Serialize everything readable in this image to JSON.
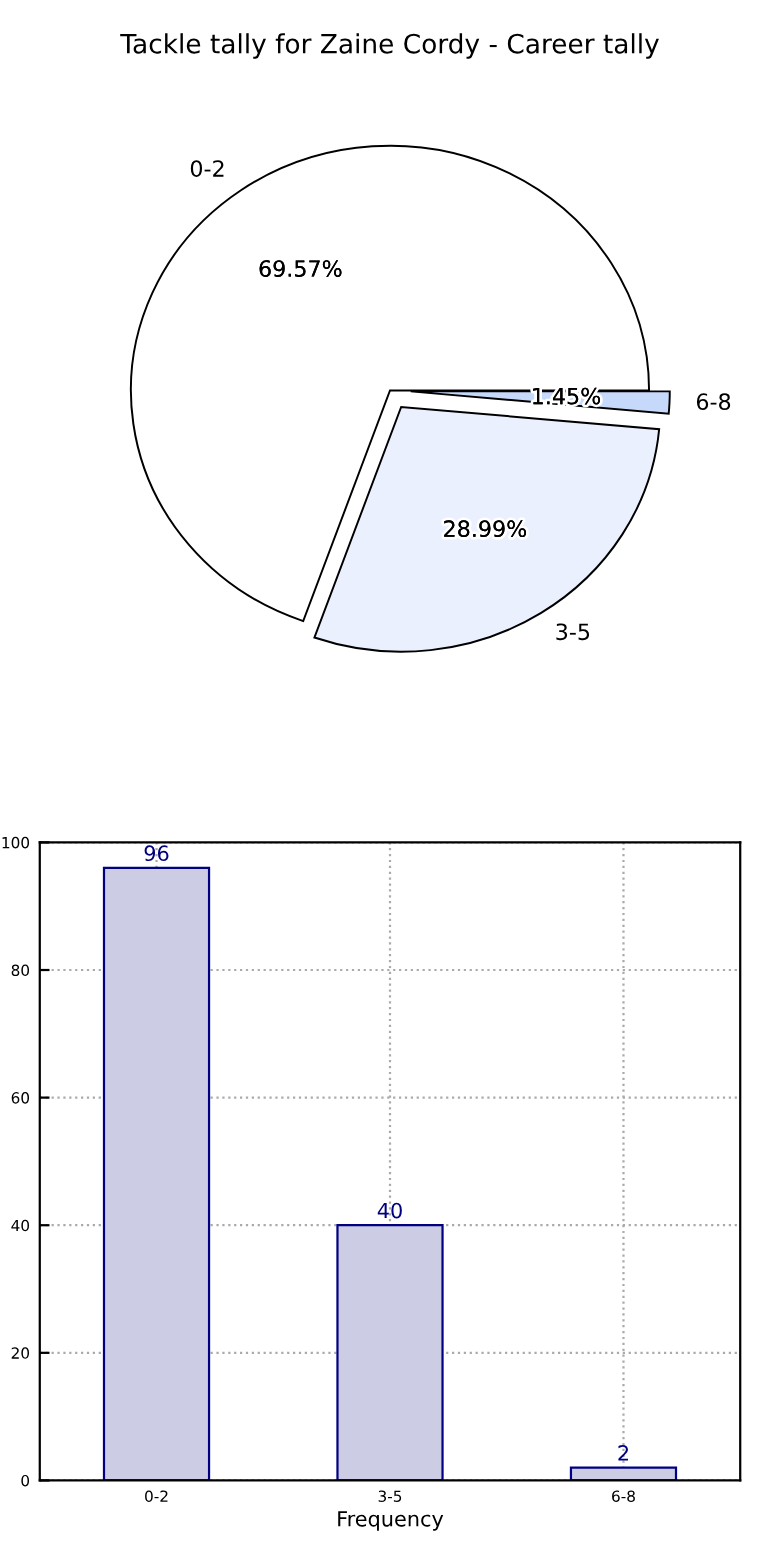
{
  "chart_data": [
    {
      "type": "pie",
      "title": "Tackle tally for Zaine Cordy - Career tally",
      "categories": [
        "0-2",
        "3-5",
        "6-8"
      ],
      "values": [
        69.57,
        28.99,
        1.45
      ],
      "colors": [
        "#ffffff",
        "#eaf0fe",
        "#c6d9fb"
      ],
      "value_labels": [
        "69.57%",
        "28.99%",
        "1.45%"
      ]
    },
    {
      "type": "bar",
      "categories": [
        "0-2",
        "3-5",
        "6-8"
      ],
      "values": [
        96,
        40,
        2
      ],
      "color": "#ccccE4",
      "xlabel": "Frequency",
      "ylim": [
        0,
        100
      ],
      "yticks": [
        0,
        20,
        40,
        60,
        80,
        100
      ],
      "grid": true,
      "data_labels": true
    }
  ]
}
